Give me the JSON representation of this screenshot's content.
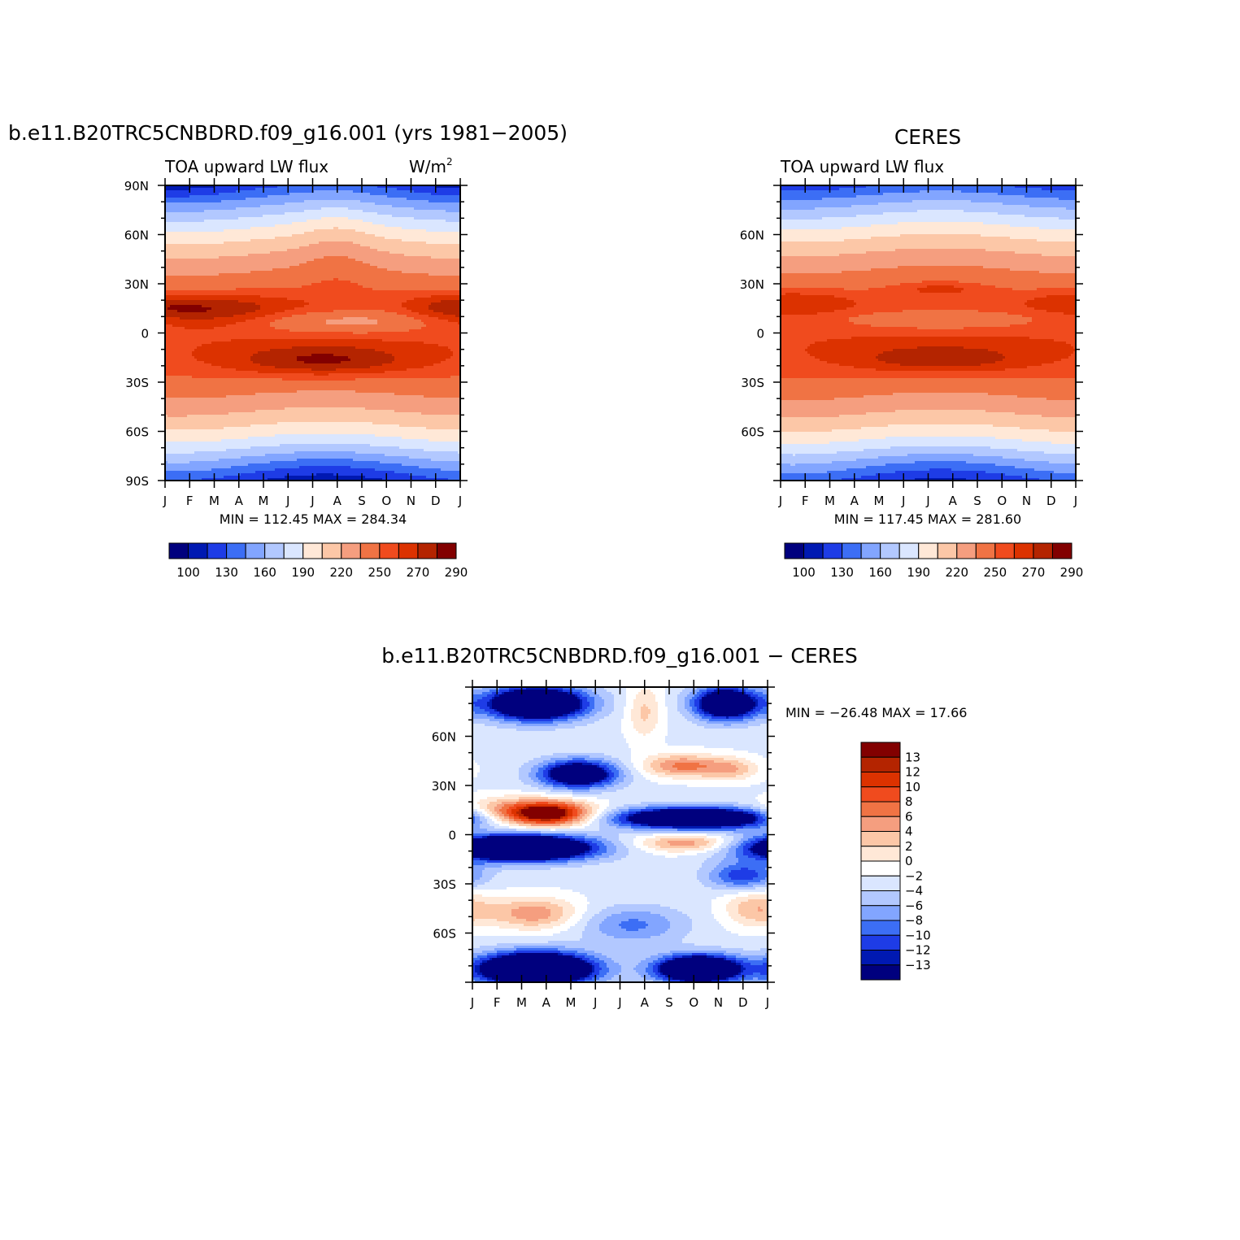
{
  "colors": {
    "abs_palette": [
      "#00007e",
      "#0019b2",
      "#1e3ce6",
      "#3c6ef5",
      "#82a5ff",
      "#b2c8ff",
      "#dae6ff",
      "#ffe8d7",
      "#fcc7a7",
      "#f59e7f",
      "#f07344",
      "#f04b1e",
      "#dc3200",
      "#b42400",
      "#820000"
    ],
    "diff_palette": [
      "#00007e",
      "#0019b2",
      "#1e3ce6",
      "#3c6ef5",
      "#82a5ff",
      "#b2c8ff",
      "#dae6ff",
      "#ffffff",
      "#ffe8d7",
      "#fcc7a7",
      "#f59e7f",
      "#f07344",
      "#f04b1e",
      "#dc3200",
      "#b42400",
      "#820000"
    ]
  },
  "months": [
    "J",
    "F",
    "M",
    "A",
    "M",
    "J",
    "J",
    "A",
    "S",
    "O",
    "N",
    "D",
    "J"
  ],
  "panels": {
    "model": {
      "title": "b.e11.B20TRC5CNBDRD.f09_g16.001 (yrs 1981−2005)",
      "left_label": "TOA upward LW flux",
      "right_label": "W/m",
      "right_label_sup": "2",
      "y_ticks": [
        "90N",
        "60N",
        "30N",
        "0",
        "30S",
        "60S",
        "90S"
      ],
      "stats": "MIN =  112.45  MAX =  284.34",
      "colorbar_labels": [
        "100",
        "130",
        "160",
        "190",
        "220",
        "250",
        "270",
        "290"
      ]
    },
    "obs": {
      "title": "CERES",
      "left_label": "TOA upward LW flux",
      "y_ticks": [
        "60N",
        "30N",
        "0",
        "30S",
        "60S"
      ],
      "stats": "MIN =  117.45  MAX =  281.60",
      "colorbar_labels": [
        "100",
        "130",
        "160",
        "190",
        "220",
        "250",
        "270",
        "290"
      ]
    },
    "diff": {
      "title": "b.e11.B20TRC5CNBDRD.f09_g16.001  −  CERES",
      "y_ticks": [
        "60N",
        "30N",
        "0",
        "30S",
        "60S"
      ],
      "stats": "MIN =  −26.48  MAX =    17.66",
      "colorbar_labels": [
        "13",
        "12",
        "10",
        "8",
        "6",
        "4",
        "2",
        "0",
        "−2",
        "−4",
        "−6",
        "−8",
        "−10",
        "−12",
        "−13"
      ]
    }
  },
  "chart_data": [
    {
      "type": "heatmap",
      "title": "b.e11.B20TRC5CNBDRD.f09_g16.001 (yrs 1981−2005)",
      "subtitle": "TOA upward LW flux",
      "units": "W/m2",
      "x": [
        "J",
        "F",
        "M",
        "A",
        "M",
        "J",
        "J",
        "A",
        "S",
        "O",
        "N",
        "D",
        "J"
      ],
      "y_range_deg": [
        -90,
        90
      ],
      "min": 112.45,
      "max": 284.34,
      "levels": [
        100,
        115,
        130,
        145,
        160,
        175,
        190,
        205,
        220,
        235,
        250,
        260,
        270,
        280,
        290
      ],
      "features": {
        "tropical_max": [
          {
            "lat": 15,
            "month": 2.2,
            "value": 285
          },
          {
            "lat": -17,
            "month": 6.4,
            "value": 284
          }
        ],
        "equatorial_min": {
          "lat": 7,
          "month": 7.3,
          "value": 224
        },
        "south_polar_min": {
          "lat": -87,
          "month": 6.5,
          "value": 113
        },
        "north_polar_min": {
          "lat": 88,
          "month": 0.7,
          "value": 150
        }
      }
    },
    {
      "type": "heatmap",
      "title": "CERES",
      "subtitle": "TOA upward LW flux",
      "x": [
        "J",
        "F",
        "M",
        "A",
        "M",
        "J",
        "J",
        "A",
        "S",
        "O",
        "N",
        "D",
        "J"
      ],
      "y_range_deg": [
        -90,
        90
      ],
      "min": 117.45,
      "max": 281.6,
      "levels": [
        100,
        115,
        130,
        145,
        160,
        175,
        190,
        205,
        220,
        235,
        250,
        260,
        270,
        280,
        290
      ],
      "features": {
        "tropical_max": [
          {
            "lat": 19,
            "month": 0.5,
            "value": 280
          },
          {
            "lat": -16,
            "month": 6.5,
            "value": 281
          }
        ],
        "equatorial_min": {
          "lat": 8,
          "month": 6.5,
          "value": 232
        },
        "south_polar_min": {
          "lat": -88,
          "month": 6.5,
          "value": 118
        }
      }
    },
    {
      "type": "heatmap",
      "title": "b.e11.B20TRC5CNBDRD.f09_g16.001  −  CERES",
      "x": [
        "J",
        "F",
        "M",
        "A",
        "M",
        "J",
        "J",
        "A",
        "S",
        "O",
        "N",
        "D",
        "J"
      ],
      "y_range_deg": [
        -90,
        90
      ],
      "min": -26.48,
      "max": 17.66,
      "levels": [
        -13,
        -12,
        -10,
        -8,
        -6,
        -4,
        -2,
        0,
        2,
        4,
        6,
        8,
        10,
        12,
        13
      ],
      "features": {
        "positive": [
          {
            "lat": 13,
            "month": 3.0,
            "value": 16
          },
          {
            "lat": 42,
            "month": 8.5,
            "value": 6
          },
          {
            "lat": -5,
            "month": 8.7,
            "value": 6
          },
          {
            "lat": -48,
            "month": 2.5,
            "value": 6
          }
        ],
        "negative": [
          {
            "lat": 10,
            "month": 9.0,
            "value": -20
          },
          {
            "lat": -8,
            "month": 2.0,
            "value": -25
          },
          {
            "lat": 37,
            "month": 4.3,
            "value": -16
          },
          {
            "lat": -82,
            "month": 2.6,
            "value": -25
          },
          {
            "lat": -82,
            "month": 9.2,
            "value": -20
          },
          {
            "lat": 80,
            "month": 2.6,
            "value": -20
          },
          {
            "lat": 80,
            "month": 10.3,
            "value": -16
          }
        ]
      }
    }
  ]
}
